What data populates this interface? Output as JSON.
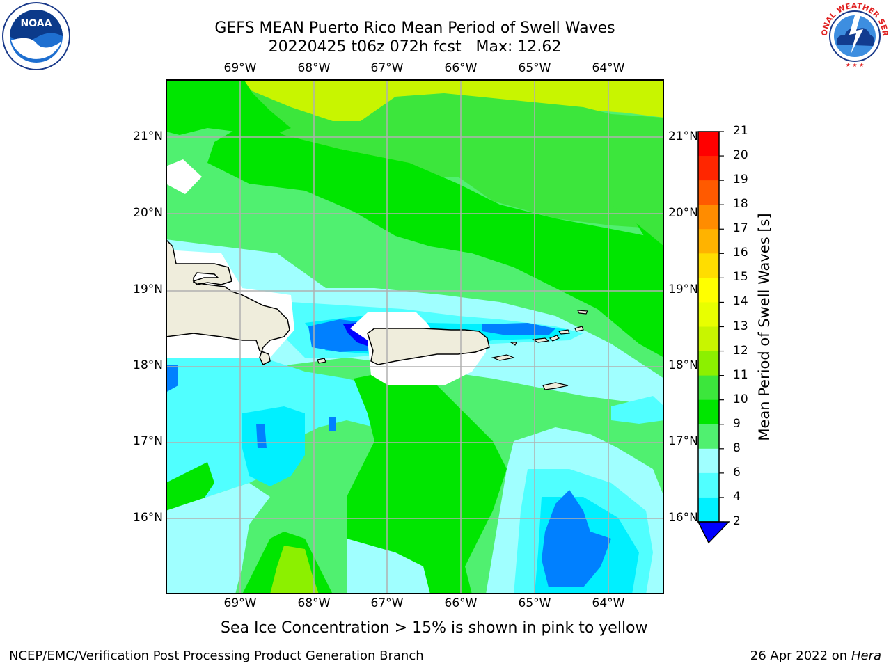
{
  "header": {
    "title_line1": "GEFS MEAN Puerto Rico Mean Period of Swell Waves",
    "title_line2": "20220425 t06z 072h fcst   Max: 12.62"
  },
  "map": {
    "lon_labels": [
      "69°W",
      "68°W",
      "67°W",
      "66°W",
      "65°W",
      "64°W"
    ],
    "lat_labels": [
      "21°N",
      "20°N",
      "19°N",
      "18°N",
      "17°N",
      "16°N"
    ],
    "land_color": "#efeddc",
    "grid_color": "#b0b0b0"
  },
  "colorbar": {
    "label": "Mean Period of Swell Waves [s]",
    "ticks": [
      "21",
      "20",
      "19",
      "18",
      "17",
      "16",
      "15",
      "14",
      "13",
      "12",
      "11",
      "10",
      "9",
      "8",
      "6",
      "4",
      "2"
    ],
    "colors": [
      "#ff0000",
      "#ff2600",
      "#ff5a00",
      "#ff8c00",
      "#ffb300",
      "#ffdd00",
      "#ffff00",
      "#e8ff00",
      "#c8f500",
      "#8cf000",
      "#3ce63c",
      "#00e600",
      "#50f070",
      "#a0ffff",
      "#50ffff",
      "#00f0ff",
      "#0080ff",
      "#0000ff"
    ]
  },
  "logos": {
    "noaa_text": "NOAA",
    "nws_text": "NATIONAL WEATHER SERVICE"
  },
  "footer": {
    "note": "Sea Ice Concentration > 15% is shown in pink to yellow",
    "credit_left": "NCEP/EMC/Verification Post Processing Product Generation Branch",
    "credit_right_prefix": "26 Apr 2022 on ",
    "credit_right_machine": "Hera"
  }
}
